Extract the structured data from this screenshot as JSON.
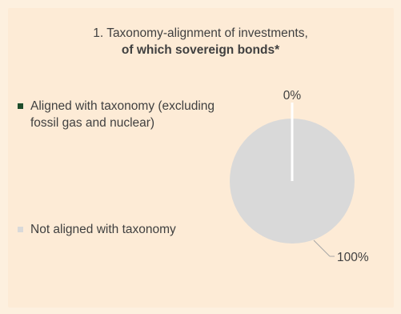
{
  "chart_data": {
    "type": "pie",
    "title": "1. Taxonomy-alignment of investments,",
    "subtitle": "of which sovereign bonds*",
    "series": [
      {
        "name": "Aligned with taxonomy (excluding fossil gas and nuclear)",
        "value": 0,
        "label": "0%",
        "color": "#1e4d2b"
      },
      {
        "name": "Not aligned with taxonomy",
        "value": 100,
        "label": "100%",
        "color": "#d9d9d9"
      }
    ],
    "legend_position": "left"
  },
  "colors": {
    "background": "#fdebd6",
    "text": "#404040",
    "separator": "#ffffff",
    "leader_line": "#a6a6a6"
  }
}
